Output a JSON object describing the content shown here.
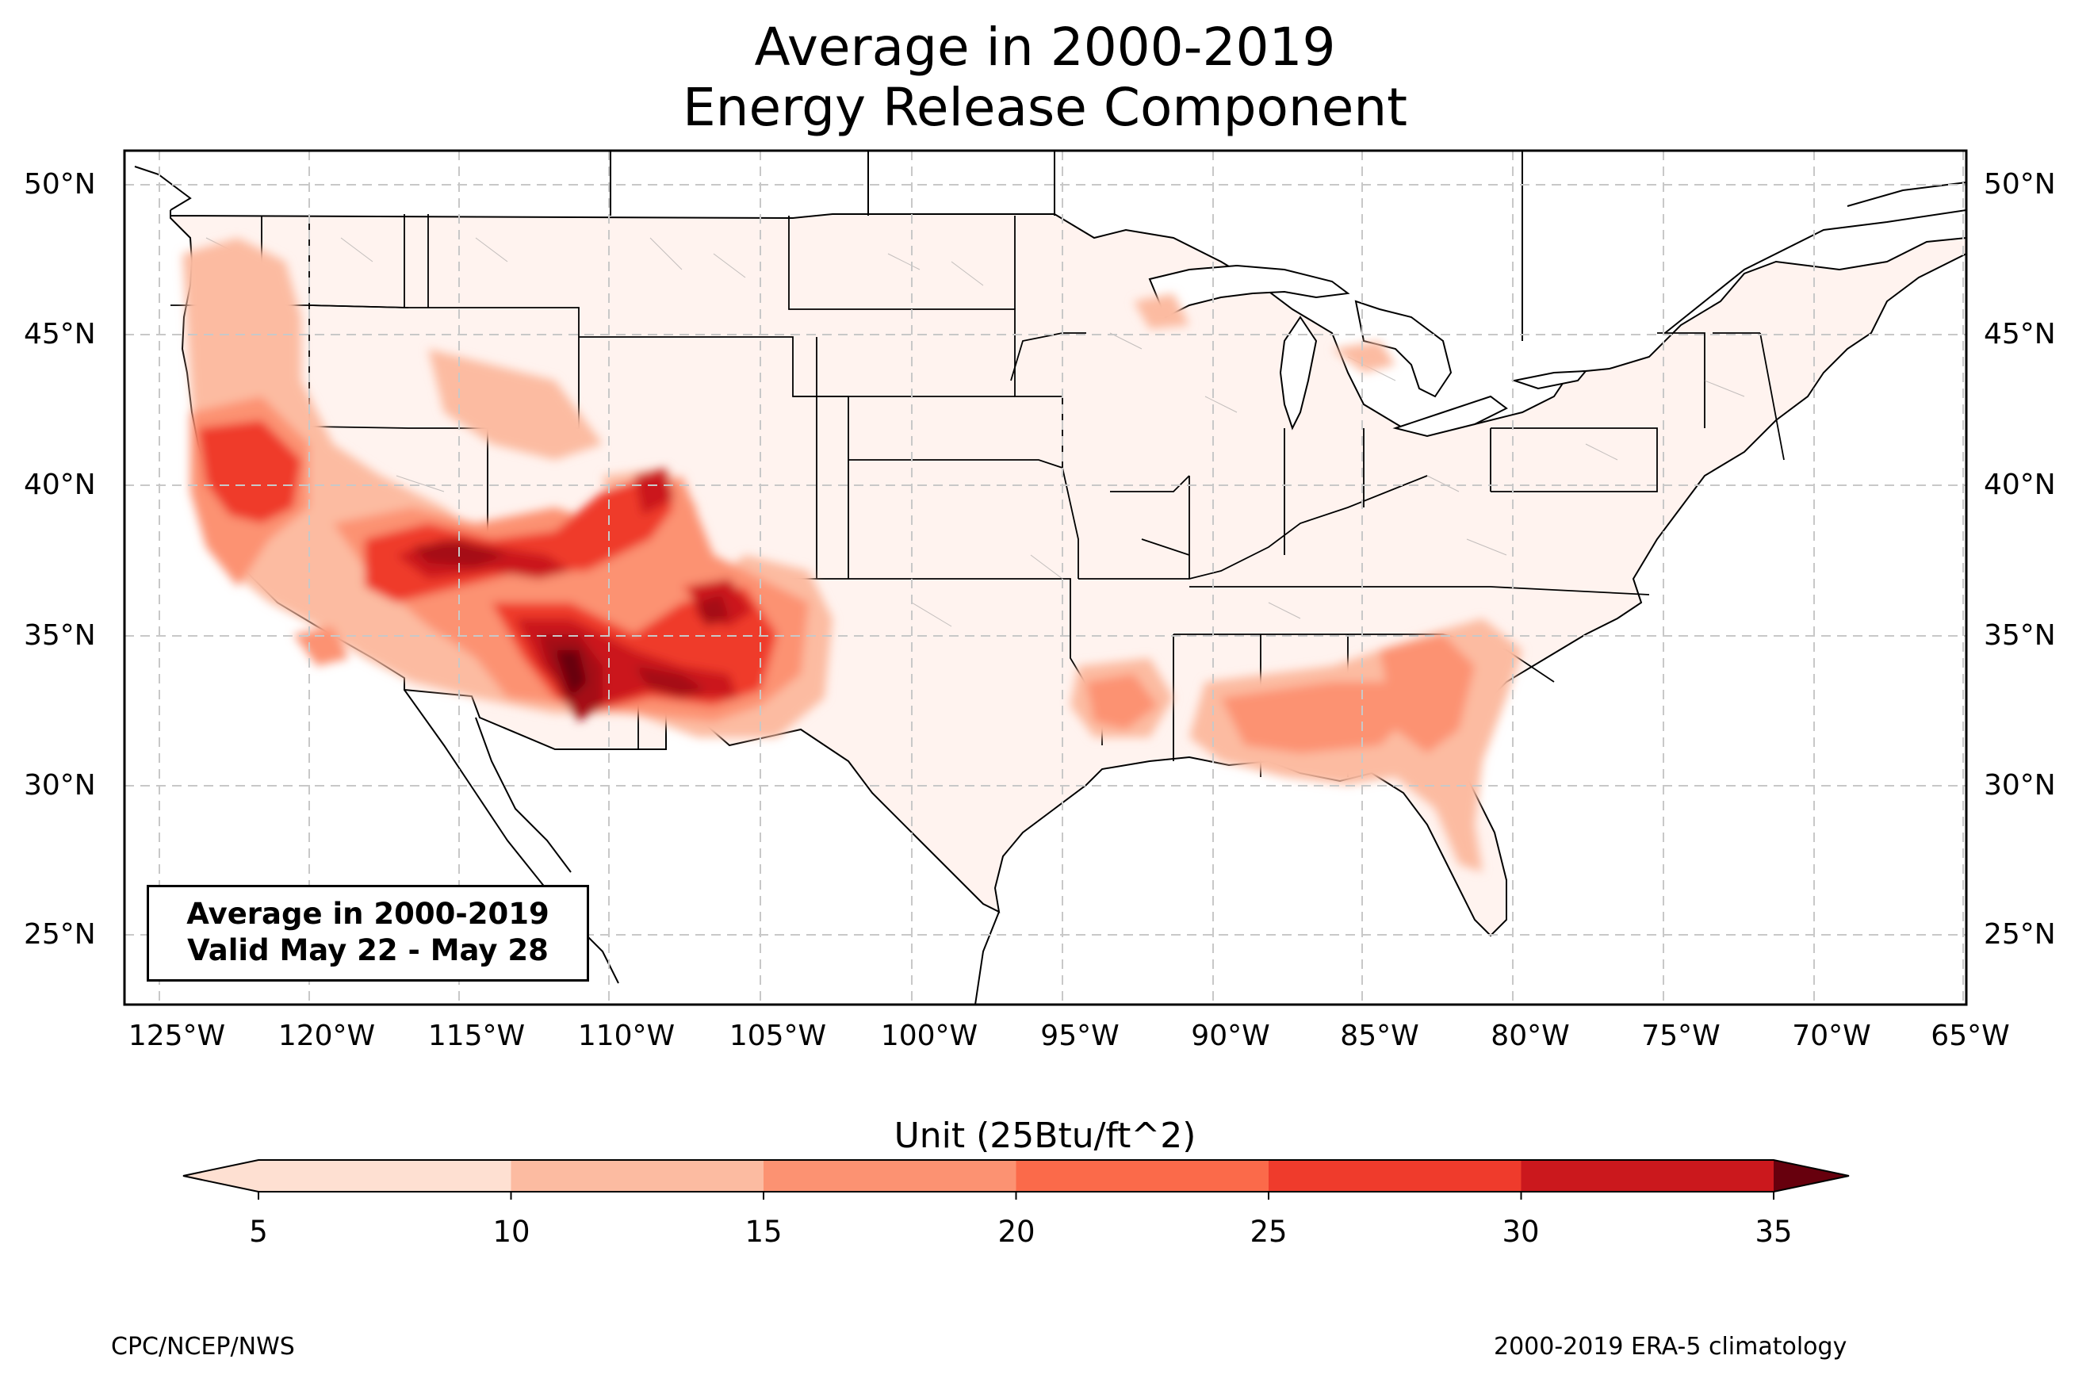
{
  "title_line1": "Average in 2000-2019",
  "title_line2": "Energy Release Component",
  "info_box": {
    "line1": "Average in 2000-2019",
    "line2": "Valid May 22 - May 28"
  },
  "lat_labels": [
    "50°N",
    "45°N",
    "40°N",
    "35°N",
    "30°N",
    "25°N"
  ],
  "lon_labels": [
    "125°W",
    "120°W",
    "115°W",
    "110°W",
    "105°W",
    "100°W",
    "95°W",
    "90°W",
    "85°W",
    "80°W",
    "75°W",
    "70°W",
    "65°W"
  ],
  "colorbar": {
    "title": "Unit (25Btu/ft^2)",
    "ticks": [
      "5",
      "10",
      "15",
      "20",
      "25",
      "30",
      "35"
    ],
    "colors": [
      "#fee0d2",
      "#fcbba1",
      "#fc9272",
      "#fb6a4a",
      "#ef3b2c",
      "#cb181d",
      "#a50f15",
      "#67000d"
    ]
  },
  "footer_left": "CPC/NCEP/NWS",
  "footer_right": "2000-2019 ERA-5 climatology",
  "colors": {
    "low": "#fff5f0",
    "grid": "#cccccc",
    "border": "#000000"
  }
}
